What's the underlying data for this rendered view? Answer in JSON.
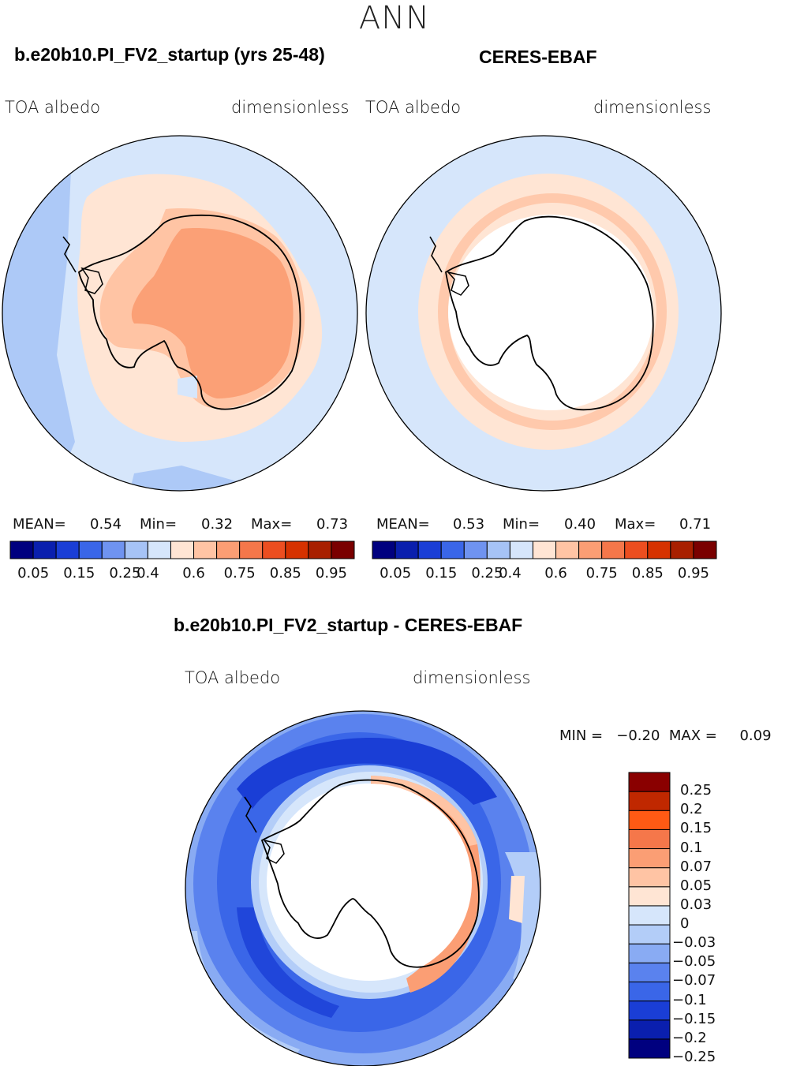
{
  "title": "ANN",
  "panel_left": {
    "case": "b.e20b10.PI_FV2_startup (yrs 25-48)",
    "left_label": "TOA  albedo",
    "right_label": "dimensionless",
    "stats": {
      "mean_label": "MEAN=",
      "mean": "0.54",
      "min_label": "Min=",
      "min": "0.32",
      "max_label": "Max=",
      "max": "0.73"
    }
  },
  "panel_right": {
    "case": "CERES-EBAF",
    "left_label": "TOA  albedo",
    "right_label": "dimensionless",
    "stats": {
      "mean_label": "MEAN=",
      "mean": "0.53",
      "min_label": "Min=",
      "min": "0.40",
      "max_label": "Max=",
      "max": "0.71"
    }
  },
  "panel_diff": {
    "case": "b.e20b10.PI_FV2_startup - CERES-EBAF",
    "left_label": "TOA  albedo",
    "right_label": "dimensionless",
    "stats_text": "MIN =   −0.20  MAX =     0.09"
  },
  "colorbar_abs": {
    "colors": [
      "#00007f",
      "#0a1fae",
      "#1a3ed6",
      "#3a66e8",
      "#6f93f0",
      "#a6c3f6",
      "#d6e6fb",
      "#ffe5d4",
      "#ffc4a4",
      "#fb9e74",
      "#f5774a",
      "#ec4e20",
      "#d63200",
      "#a82000",
      "#7a0000"
    ],
    "labels": [
      "0.05",
      "0.15",
      "0.25",
      "0.4",
      "0.6",
      "0.75",
      "0.85",
      "0.95"
    ]
  },
  "colorbar_diff": {
    "colors": [
      "#00007f",
      "#0a1fae",
      "#1a3ed6",
      "#3a66e8",
      "#5a82ee",
      "#89abf3",
      "#b3cdf8",
      "#d6e6fb",
      "#ffe5d4",
      "#ffc4a4",
      "#fb9e74",
      "#f5774a",
      "#ff5a14",
      "#c02800",
      "#8a0000"
    ],
    "labels": [
      "0.25",
      "0.2",
      "0.15",
      "0.1",
      "0.07",
      "0.05",
      "0.03",
      "0",
      "−0.03",
      "−0.05",
      "−0.07",
      "−0.1",
      "−0.15",
      "−0.2",
      "−0.25"
    ]
  }
}
